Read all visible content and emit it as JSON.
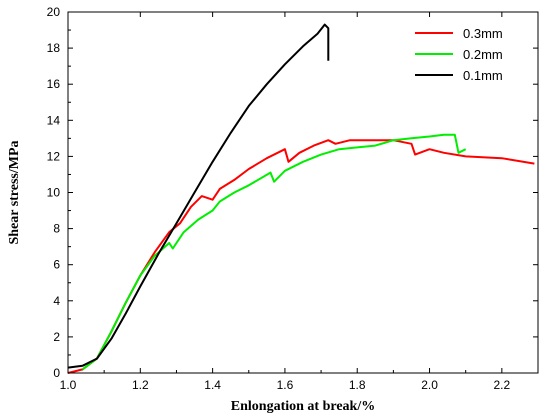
{
  "chart_data": {
    "type": "line",
    "title": "",
    "xlabel": "Enlongation at break/%",
    "ylabel": "Shear stress/MPa",
    "xlim": [
      1.0,
      2.3
    ],
    "ylim": [
      0,
      20
    ],
    "x_ticks": [
      "1.0",
      "1.2",
      "1.4",
      "1.6",
      "1.8",
      "2.0",
      "2.2"
    ],
    "y_ticks": [
      "0",
      "2",
      "4",
      "6",
      "8",
      "10",
      "12",
      "14",
      "16",
      "18",
      "20"
    ],
    "grid": false,
    "legend_position": "top-right",
    "series": [
      {
        "name": "0.3mm",
        "color": "#ff0000",
        "points": [
          [
            1.0,
            0.0
          ],
          [
            1.04,
            0.2
          ],
          [
            1.08,
            0.8
          ],
          [
            1.12,
            2.3
          ],
          [
            1.16,
            3.9
          ],
          [
            1.2,
            5.4
          ],
          [
            1.24,
            6.7
          ],
          [
            1.28,
            7.8
          ],
          [
            1.31,
            8.3
          ],
          [
            1.34,
            9.2
          ],
          [
            1.37,
            9.8
          ],
          [
            1.4,
            9.6
          ],
          [
            1.42,
            10.2
          ],
          [
            1.46,
            10.7
          ],
          [
            1.5,
            11.3
          ],
          [
            1.55,
            11.9
          ],
          [
            1.6,
            12.4
          ],
          [
            1.61,
            11.7
          ],
          [
            1.64,
            12.2
          ],
          [
            1.68,
            12.6
          ],
          [
            1.72,
            12.9
          ],
          [
            1.74,
            12.7
          ],
          [
            1.78,
            12.9
          ],
          [
            1.84,
            12.9
          ],
          [
            1.9,
            12.9
          ],
          [
            1.95,
            12.7
          ],
          [
            1.96,
            12.1
          ],
          [
            2.0,
            12.4
          ],
          [
            2.04,
            12.2
          ],
          [
            2.1,
            12.0
          ],
          [
            2.2,
            11.9
          ],
          [
            2.29,
            11.6
          ]
        ]
      },
      {
        "name": "0.2mm",
        "color": "#00ee00",
        "points": [
          [
            1.04,
            0.2
          ],
          [
            1.08,
            0.8
          ],
          [
            1.12,
            2.3
          ],
          [
            1.16,
            3.9
          ],
          [
            1.2,
            5.4
          ],
          [
            1.24,
            6.5
          ],
          [
            1.28,
            7.2
          ],
          [
            1.29,
            6.9
          ],
          [
            1.32,
            7.8
          ],
          [
            1.36,
            8.5
          ],
          [
            1.4,
            9.0
          ],
          [
            1.42,
            9.5
          ],
          [
            1.46,
            10.0
          ],
          [
            1.5,
            10.4
          ],
          [
            1.56,
            11.1
          ],
          [
            1.57,
            10.6
          ],
          [
            1.6,
            11.2
          ],
          [
            1.65,
            11.7
          ],
          [
            1.7,
            12.1
          ],
          [
            1.75,
            12.4
          ],
          [
            1.8,
            12.5
          ],
          [
            1.85,
            12.6
          ],
          [
            1.9,
            12.9
          ],
          [
            1.95,
            13.0
          ],
          [
            2.0,
            13.1
          ],
          [
            2.04,
            13.2
          ],
          [
            2.07,
            13.2
          ],
          [
            2.08,
            12.2
          ],
          [
            2.1,
            12.4
          ]
        ]
      },
      {
        "name": "0.1mm",
        "color": "#000000",
        "points": [
          [
            1.0,
            0.3
          ],
          [
            1.04,
            0.4
          ],
          [
            1.08,
            0.8
          ],
          [
            1.12,
            1.9
          ],
          [
            1.16,
            3.3
          ],
          [
            1.2,
            4.8
          ],
          [
            1.25,
            6.6
          ],
          [
            1.3,
            8.3
          ],
          [
            1.35,
            10.0
          ],
          [
            1.4,
            11.7
          ],
          [
            1.45,
            13.3
          ],
          [
            1.5,
            14.8
          ],
          [
            1.55,
            16.0
          ],
          [
            1.6,
            17.1
          ],
          [
            1.65,
            18.1
          ],
          [
            1.69,
            18.8
          ],
          [
            1.71,
            19.3
          ],
          [
            1.72,
            19.1
          ],
          [
            1.72,
            17.3
          ]
        ]
      }
    ]
  }
}
